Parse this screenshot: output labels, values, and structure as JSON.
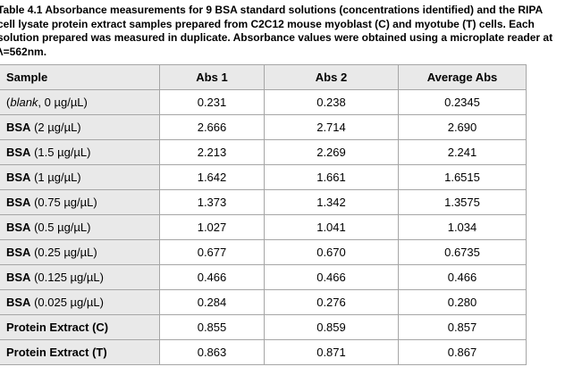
{
  "caption": {
    "lines": [
      "Table 4.1 Absorbance measurements for 9 BSA standard solutions (concentrations identified) and the RIPA",
      "cell lysate protein extract samples prepared from C2C12 mouse myoblast (C) and myotube (T) cells. Each",
      "solution prepared was measured in duplicate. Absorbance values were obtained using a microplate reader at",
      "λ=562nm."
    ]
  },
  "table": {
    "headers": [
      "Sample",
      "Abs 1",
      "Abs 2",
      "Average Abs"
    ],
    "rows": [
      {
        "bold": "",
        "pre": "(",
        "italic": "blank",
        "post": ", 0 µg/µL)",
        "abs1": "0.231",
        "abs2": "0.238",
        "avg": "0.2345"
      },
      {
        "bold": "BSA",
        "pre": " (",
        "italic": "",
        "post": "2 µg/µL)",
        "abs1": "2.666",
        "abs2": "2.714",
        "avg": "2.690"
      },
      {
        "bold": "BSA",
        "pre": " (",
        "italic": "",
        "post": "1.5 µg/µL)",
        "abs1": "2.213",
        "abs2": "2.269",
        "avg": "2.241"
      },
      {
        "bold": "BSA",
        "pre": " (",
        "italic": "",
        "post": "1 µg/µL)",
        "abs1": "1.642",
        "abs2": "1.661",
        "avg": "1.6515"
      },
      {
        "bold": "BSA",
        "pre": " (",
        "italic": "",
        "post": "0.75 µg/µL)",
        "abs1": "1.373",
        "abs2": "1.342",
        "avg": "1.3575"
      },
      {
        "bold": "BSA",
        "pre": " (",
        "italic": "",
        "post": "0.5 µg/µL)",
        "abs1": "1.027",
        "abs2": "1.041",
        "avg": "1.034"
      },
      {
        "bold": "BSA",
        "pre": " (",
        "italic": "",
        "post": "0.25 µg/µL)",
        "abs1": "0.677",
        "abs2": "0.670",
        "avg": "0.6735"
      },
      {
        "bold": "BSA",
        "pre": " (",
        "italic": "",
        "post": "0.125 µg/µL)",
        "abs1": "0.466",
        "abs2": "0.466",
        "avg": "0.466"
      },
      {
        "bold": "BSA",
        "pre": " (",
        "italic": "",
        "post": "0.025 µg/µL)",
        "abs1": "0.284",
        "abs2": "0.276",
        "avg": "0.280"
      },
      {
        "bold": "Protein Extract (C)",
        "pre": "",
        "italic": "",
        "post": "",
        "abs1": "0.855",
        "abs2": "0.859",
        "avg": "0.857"
      },
      {
        "bold": "Protein Extract (T)",
        "pre": "",
        "italic": "",
        "post": "",
        "abs1": "0.863",
        "abs2": "0.871",
        "avg": "0.867"
      }
    ]
  },
  "colors": {
    "page_bg": "#ffffff",
    "label_bg": "#e9e9e9",
    "border": "#a6a6a6",
    "text": "#000000"
  }
}
